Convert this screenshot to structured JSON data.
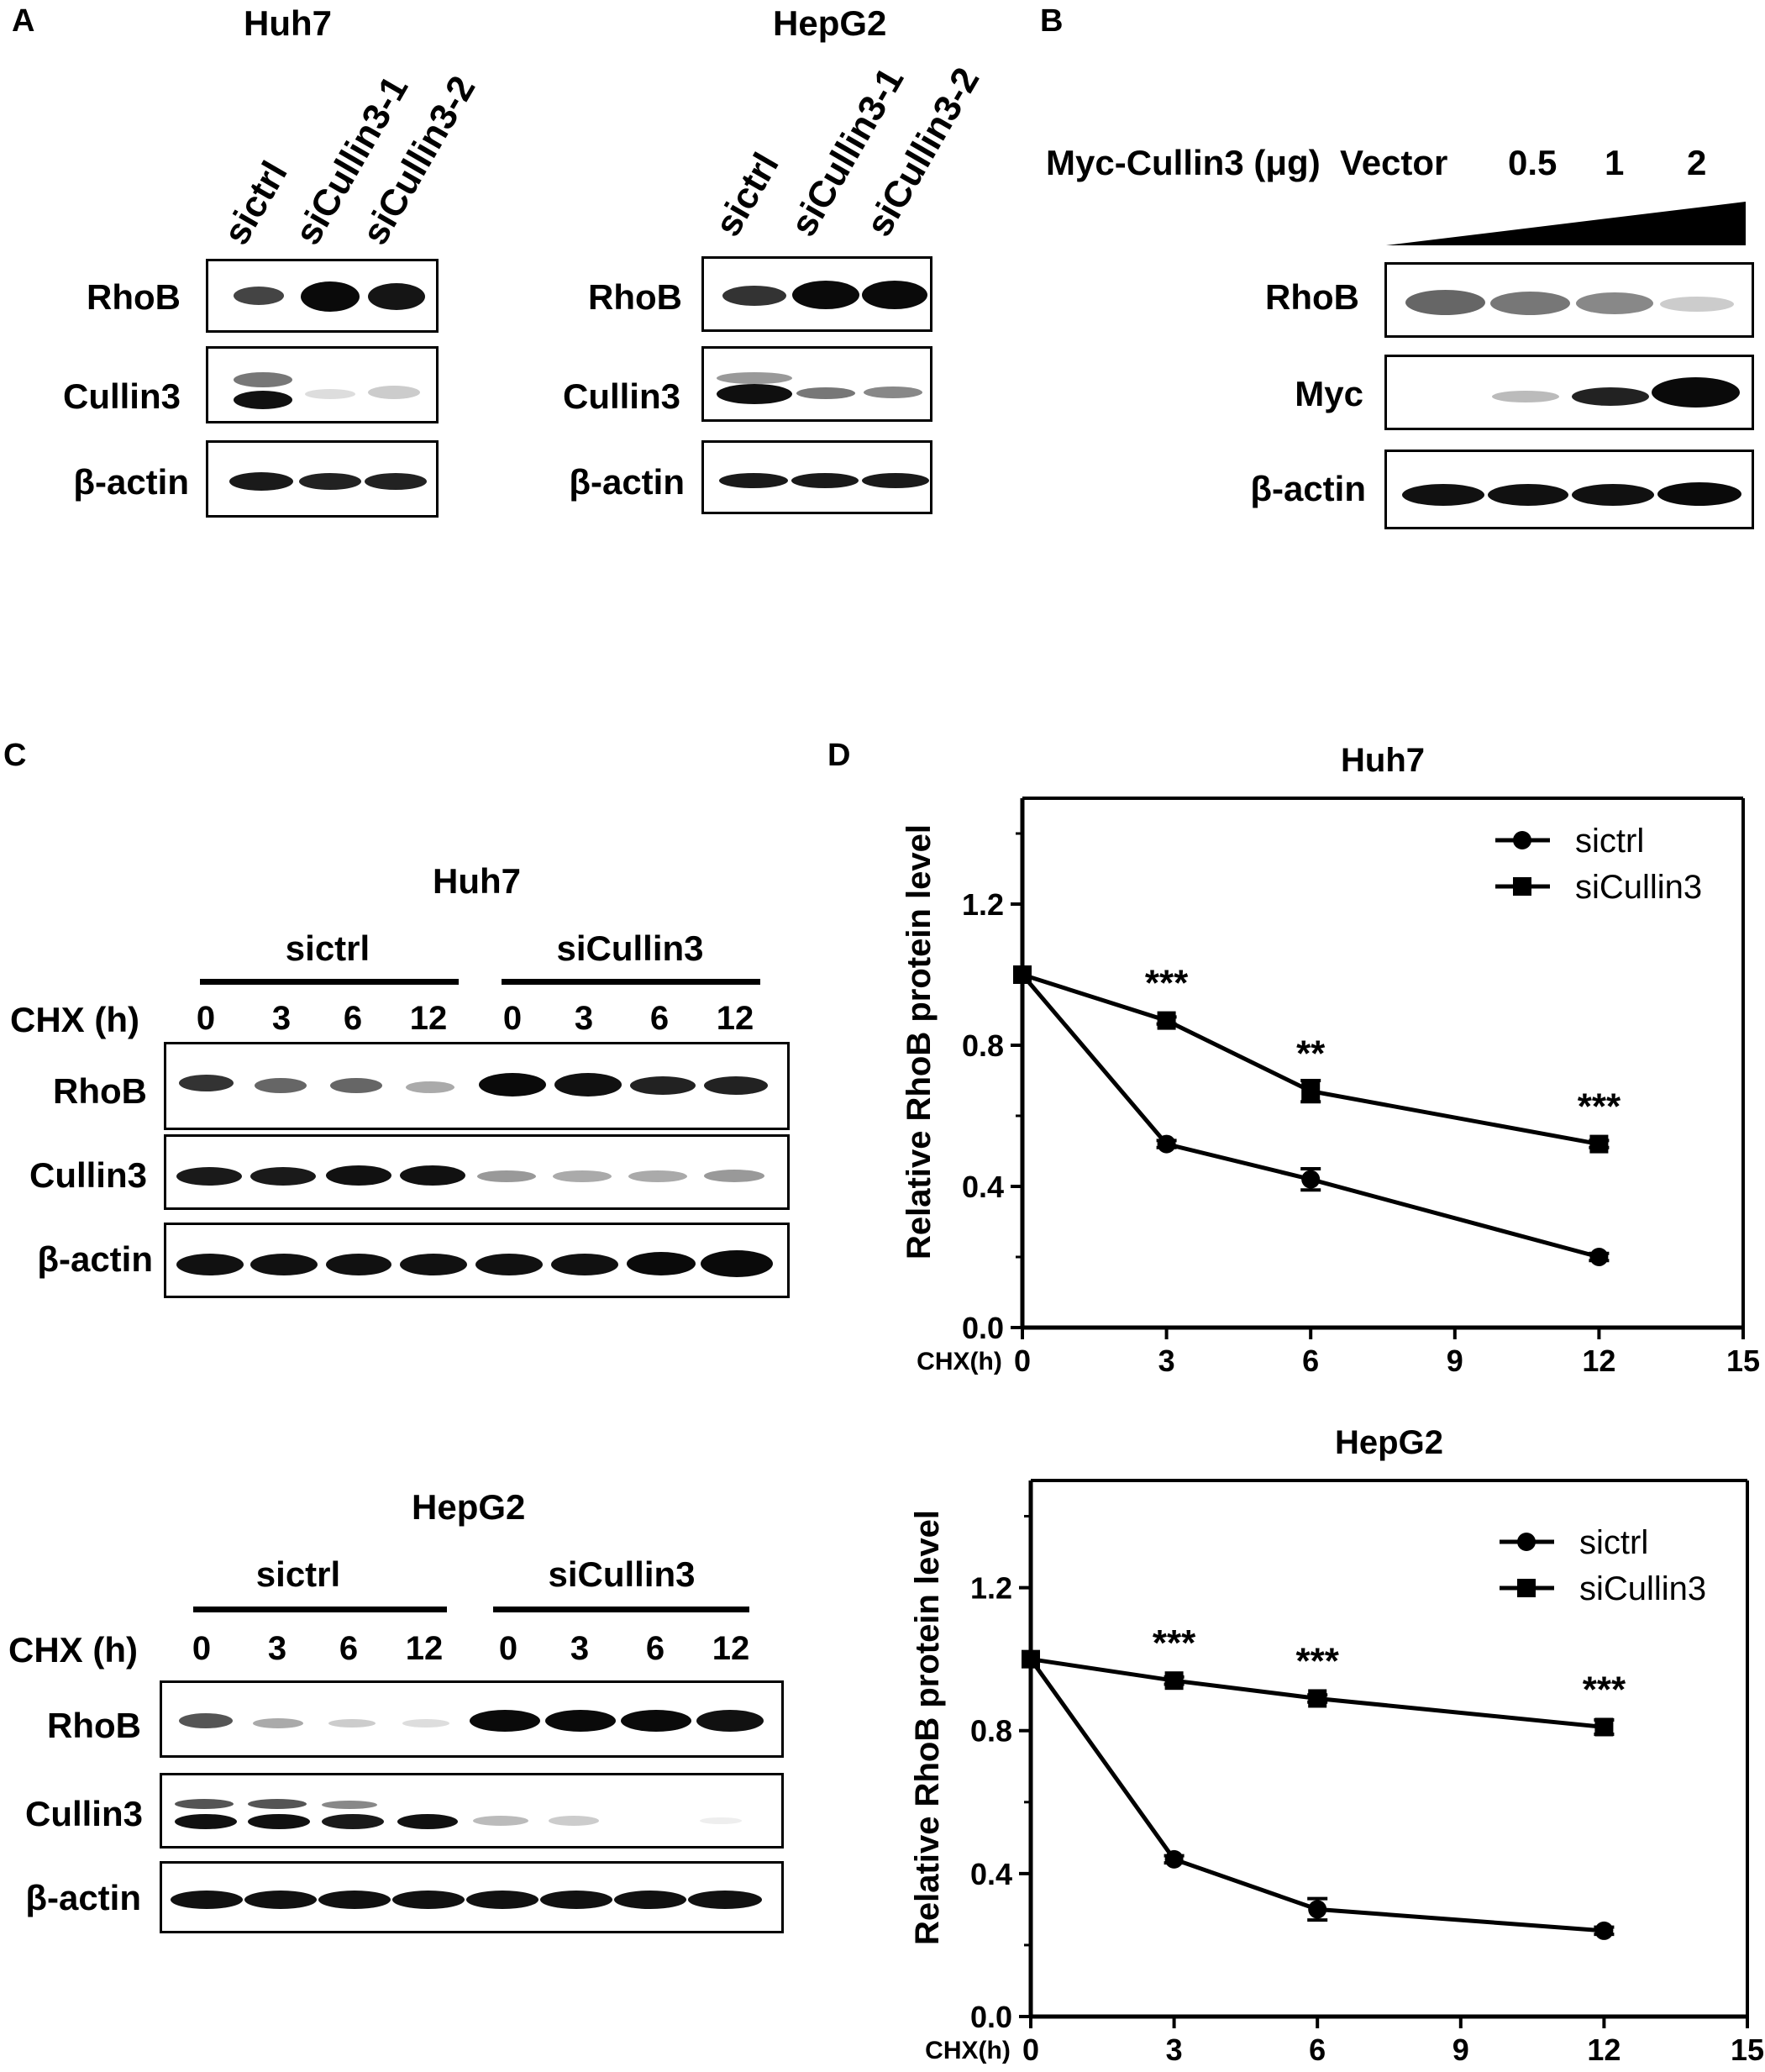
{
  "panel_letters": {
    "A": "A",
    "B": "B",
    "C": "C",
    "D": "D"
  },
  "panel_a": {
    "huh7": {
      "title": "Huh7",
      "lanes": [
        "sictrl",
        "siCullin3-1",
        "siCullin3-2"
      ],
      "rows": [
        "RhoB",
        "Cullin3",
        "β-actin"
      ]
    },
    "hepg2": {
      "title": "HepG2",
      "lanes": [
        "sictrl",
        "siCullin3-1",
        "siCullin3-2"
      ],
      "rows": [
        "RhoB",
        "Cullin3",
        "β-actin"
      ]
    }
  },
  "panel_b": {
    "header_label": "Myc-Cullin3 (μg)",
    "lanes": [
      "Vector",
      "0.5",
      "1",
      "2"
    ],
    "rows": [
      "RhoB",
      "Myc",
      "β-actin"
    ]
  },
  "panel_c": {
    "huh7": {
      "title": "Huh7",
      "conditions": [
        "sictrl",
        "siCullin3"
      ],
      "time_label": "CHX (h)",
      "times": [
        "0",
        "3",
        "6",
        "12",
        "0",
        "3",
        "6",
        "12"
      ],
      "rows": [
        "RhoB",
        "Cullin3",
        "β-actin"
      ]
    },
    "hepg2": {
      "title": "HepG2",
      "conditions": [
        "sictrl",
        "siCullin3"
      ],
      "time_label": "CHX (h)",
      "times": [
        "0",
        "3",
        "6",
        "12",
        "0",
        "3",
        "6",
        "12"
      ],
      "rows": [
        "RhoB",
        "Cullin3",
        "β-actin"
      ]
    }
  },
  "chart_data": [
    {
      "type": "line",
      "title": "Huh7",
      "xlabel": "CHX(h)",
      "ylabel": "Relative RhoB protein level",
      "xlim": [
        0,
        15
      ],
      "ylim": [
        0,
        1.5
      ],
      "xticks": [
        "0",
        "3",
        "6",
        "9",
        "12",
        "15"
      ],
      "yticks": [
        "0.0",
        "0.4",
        "0.8",
        "1.2"
      ],
      "legend_position": "top-right",
      "series": [
        {
          "name": "sictrl",
          "marker": "circle",
          "x": [
            0,
            3,
            6,
            12
          ],
          "y": [
            1.0,
            0.52,
            0.42,
            0.2
          ],
          "err": [
            0,
            0.01,
            0.03,
            0.01
          ]
        },
        {
          "name": "siCullin3",
          "marker": "square",
          "x": [
            0,
            3,
            6,
            12
          ],
          "y": [
            1.0,
            0.87,
            0.67,
            0.52
          ],
          "err": [
            0,
            0.01,
            0.03,
            0.01
          ]
        }
      ],
      "annotations": [
        {
          "x": 3,
          "y": 0.87,
          "text": "***"
        },
        {
          "x": 6,
          "y": 0.67,
          "text": "**"
        },
        {
          "x": 12,
          "y": 0.52,
          "text": "***"
        }
      ]
    },
    {
      "type": "line",
      "title": "HepG2",
      "xlabel": "CHX(h)",
      "ylabel": "Relative RhoB protein level",
      "xlim": [
        0,
        15
      ],
      "ylim": [
        0,
        1.5
      ],
      "xticks": [
        "0",
        "3",
        "6",
        "9",
        "12",
        "15"
      ],
      "yticks": [
        "0.0",
        "0.4",
        "0.8",
        "1.2"
      ],
      "legend_position": "top-right",
      "series": [
        {
          "name": "sictrl",
          "marker": "circle",
          "x": [
            0,
            3,
            6,
            12
          ],
          "y": [
            1.0,
            0.44,
            0.3,
            0.24
          ],
          "err": [
            0,
            0.01,
            0.03,
            0.01
          ]
        },
        {
          "name": "siCullin3",
          "marker": "square",
          "x": [
            0,
            3,
            6,
            12
          ],
          "y": [
            1.0,
            0.94,
            0.89,
            0.81
          ],
          "err": [
            0,
            0.01,
            0.01,
            0.02
          ]
        }
      ],
      "annotations": [
        {
          "x": 3,
          "y": 0.94,
          "text": "***"
        },
        {
          "x": 6,
          "y": 0.89,
          "text": "***"
        },
        {
          "x": 12,
          "y": 0.81,
          "text": "***"
        }
      ]
    }
  ]
}
